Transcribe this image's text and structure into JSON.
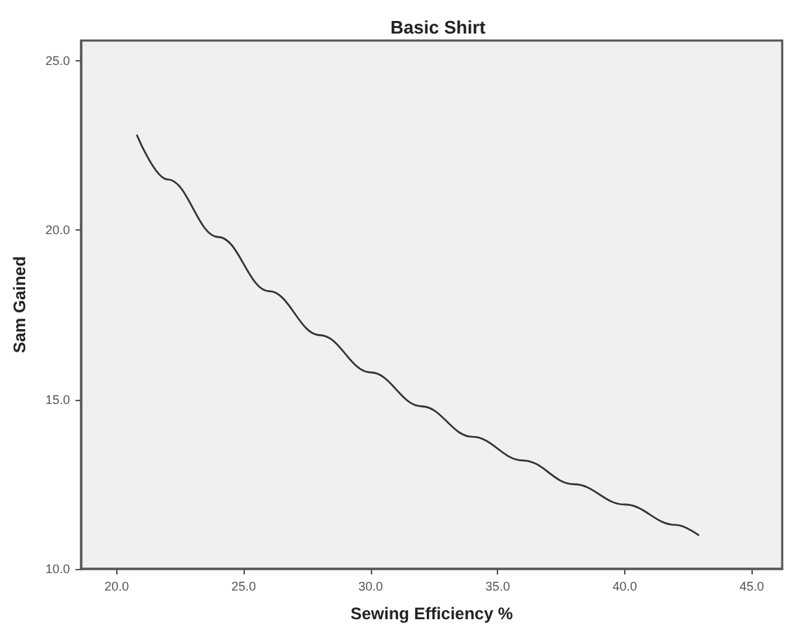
{
  "chart_data": {
    "type": "line",
    "title": "Basic Shirt",
    "xlabel": "Sewing Efficiency %",
    "ylabel": "Sam Gained",
    "x": [
      20.8,
      22,
      24,
      26,
      28,
      30,
      32,
      34,
      36,
      38,
      40,
      42,
      42.9
    ],
    "series": [
      {
        "color": "#333333",
        "values": [
          22.8,
          21.5,
          19.8,
          18.2,
          16.9,
          15.8,
          14.8,
          13.9,
          13.2,
          12.5,
          11.9,
          11.3,
          11.0
        ]
      }
    ],
    "xlim": [
      18.6,
      46.2
    ],
    "ylim": [
      10,
      25.6
    ],
    "xticks": [
      {
        "value": 20,
        "label": "20.0"
      },
      {
        "value": 25,
        "label": "25.0"
      },
      {
        "value": 30,
        "label": "30.0"
      },
      {
        "value": 35,
        "label": "35.0"
      },
      {
        "value": 40,
        "label": "40.0"
      },
      {
        "value": 45,
        "label": "45.0"
      }
    ],
    "yticks": [
      {
        "value": 10,
        "label": "10.0"
      },
      {
        "value": 15,
        "label": "15.0"
      },
      {
        "value": 20,
        "label": "20.0"
      },
      {
        "value": 25,
        "label": "25.0"
      }
    ],
    "grid": false,
    "marker": "none",
    "line_style": "solid"
  }
}
